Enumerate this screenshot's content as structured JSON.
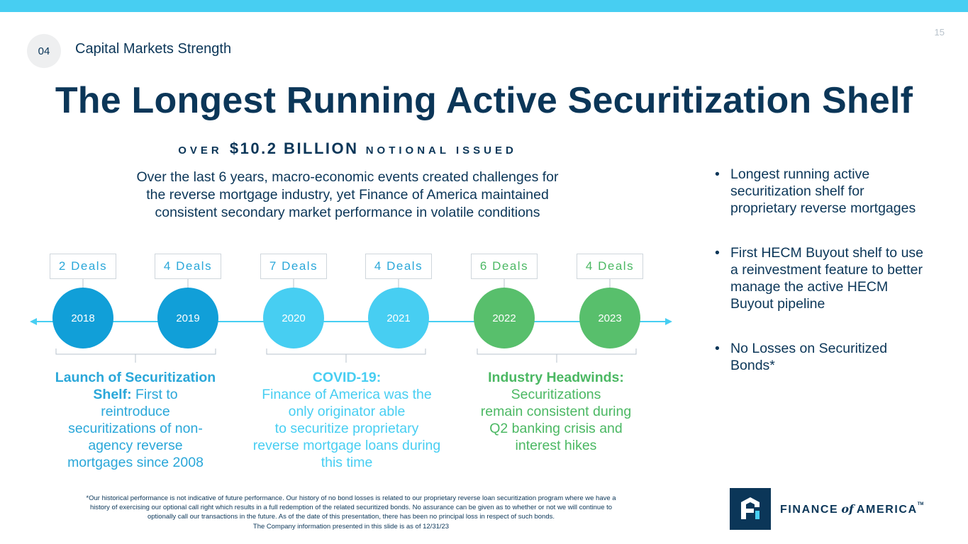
{
  "header": {
    "page_number": "15",
    "section_number": "04",
    "section_title": "Capital Markets Strength"
  },
  "title": "The Longest Running Active Securitization Shelf",
  "subhead": {
    "prefix": "OVER",
    "amount": "$10.2 BILLION",
    "suffix": "NOTIONAL ISSUED"
  },
  "intro": [
    "Over the last 6 years, macro-economic events created challenges for",
    "the reverse mortgage industry, yet Finance of America maintained",
    "consistent secondary market performance in volatile conditions"
  ],
  "timeline": [
    {
      "year": "2018",
      "deals": "2 Deals",
      "deal_count": 2,
      "color": "#119fd8"
    },
    {
      "year": "2019",
      "deals": "4 Deals",
      "deal_count": 4,
      "color": "#119fd8"
    },
    {
      "year": "2020",
      "deals": "7 Deals",
      "deal_count": 7,
      "color": "#47cef2"
    },
    {
      "year": "2021",
      "deals": "4 Deals",
      "deal_count": 4,
      "color": "#47cef2"
    },
    {
      "year": "2022",
      "deals": "6 Deals",
      "deal_count": 6,
      "color": "#58bf6c"
    },
    {
      "year": "2023",
      "deals": "4 Deals",
      "deal_count": 4,
      "color": "#58bf6c"
    }
  ],
  "events": [
    {
      "label": "Launch of Securitization Shelf:",
      "lines": [
        "Launch of Securitization",
        "Shelf: First to",
        "reintroduce",
        "securitizations of non-",
        "agency reverse",
        "mortgages since 2008"
      ],
      "color": "#2aa7d9"
    },
    {
      "label": "COVID-19:",
      "lines": [
        "COVID-19:",
        "Finance of America was the",
        "only originator able",
        "to securitize proprietary",
        "reverse mortgage loans during",
        "this time"
      ],
      "color": "#47cef2"
    },
    {
      "label": "Industry Headwinds:",
      "lines": [
        "Industry Headwinds:",
        "Securitizations",
        "remain consistent during",
        "Q2 banking crisis and",
        "interest hikes"
      ],
      "color": "#4bb863"
    }
  ],
  "bullets": [
    "Longest running active securitization shelf for proprietary reverse mortgages",
    "First HECM Buyout shelf to use a reinvestment feature to better manage the active HECM Buyout pipeline",
    "No Losses on Securitized Bonds*"
  ],
  "bullet_symbol": "•",
  "footnote": [
    "*Our historical performance is not indicative of future performance. Our history of no bond losses is related to our proprietary reverse loan securitization program where we have a",
    "history of exercising our optional call right which results in a full redemption of the related securitized bonds.  No assurance can be given as to whether or not we will continue to",
    "optionally call our transactions in the future. As of the date of this presentation, there has been no principal loss in respect of such bonds.",
    "The Company information presented in this slide is as of 12/31/23"
  ],
  "logo": {
    "finance": "FINANCE",
    "of": "of",
    "america": "AMERICA",
    "tm": "TM",
    "icon": "building-f-logo-icon"
  },
  "colors": {
    "navy": "#0b3658",
    "accent": "#47cef2",
    "dark_blue": "#119fd8",
    "green": "#58bf6c"
  }
}
